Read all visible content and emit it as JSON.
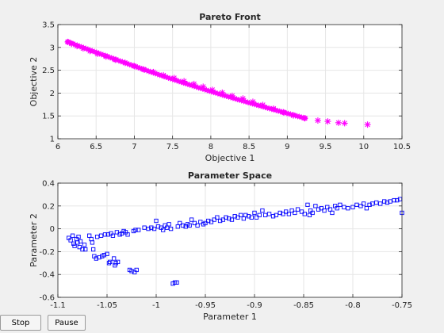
{
  "buttons": {
    "stop": "Stop",
    "pause": "Pause"
  },
  "chart_data": [
    {
      "type": "scatter",
      "title": "Pareto Front",
      "xlabel": "Objective 1",
      "ylabel": "Objective 2",
      "xlim": [
        6,
        10.5
      ],
      "ylim": [
        1,
        3.5
      ],
      "xticks": [
        6,
        6.5,
        7,
        7.5,
        8,
        8.5,
        9,
        9.5,
        10,
        10.5
      ],
      "xtick_labels": [
        "6",
        "6.5",
        "7",
        "7.5",
        "8",
        "8.5",
        "9",
        "9.5",
        "10",
        "10.5"
      ],
      "yticks": [
        1,
        1.5,
        2,
        2.5,
        3,
        3.5
      ],
      "ytick_labels": [
        "1",
        "1.5",
        "2",
        "2.5",
        "3",
        "3.5"
      ],
      "grid": true,
      "marker": "star",
      "color": "#ff00ff",
      "front_range": {
        "x_start": 6.13,
        "x_end": 9.23,
        "y_start": 3.12,
        "y_end": 1.45
      },
      "points": [
        [
          6.13,
          3.12
        ],
        [
          6.18,
          3.08
        ],
        [
          6.25,
          3.03
        ],
        [
          6.33,
          2.98
        ],
        [
          6.42,
          2.92
        ],
        [
          6.52,
          2.86
        ],
        [
          6.63,
          2.8
        ],
        [
          6.75,
          2.73
        ],
        [
          6.88,
          2.66
        ],
        [
          7.0,
          2.59
        ],
        [
          7.12,
          2.52
        ],
        [
          7.25,
          2.46
        ],
        [
          7.38,
          2.39
        ],
        [
          7.52,
          2.33
        ],
        [
          7.65,
          2.26
        ],
        [
          7.78,
          2.2
        ],
        [
          7.9,
          2.14
        ],
        [
          8.02,
          2.07
        ],
        [
          8.15,
          2.01
        ],
        [
          8.28,
          1.94
        ],
        [
          8.42,
          1.88
        ],
        [
          8.55,
          1.81
        ],
        [
          8.68,
          1.74
        ],
        [
          8.82,
          1.66
        ],
        [
          8.95,
          1.58
        ],
        [
          9.08,
          1.51
        ],
        [
          9.23,
          1.45
        ],
        [
          9.4,
          1.4
        ],
        [
          9.53,
          1.38
        ],
        [
          9.67,
          1.35
        ],
        [
          9.75,
          1.34
        ],
        [
          10.05,
          1.31
        ]
      ]
    },
    {
      "type": "scatter",
      "title": "Parameter Space",
      "xlabel": "Parameter 1",
      "ylabel": "Parameter 2",
      "xlim": [
        -1.1,
        -0.75
      ],
      "ylim": [
        -0.6,
        0.4
      ],
      "xticks": [
        -1.1,
        -1.05,
        -1,
        -0.95,
        -0.9,
        -0.85,
        -0.8,
        -0.75
      ],
      "xtick_labels": [
        "-1.1",
        "-1.05",
        "-1",
        "-0.95",
        "-0.9",
        "-0.85",
        "-0.8",
        "-0.75"
      ],
      "yticks": [
        -0.6,
        -0.4,
        -0.2,
        0,
        0.2,
        0.4
      ],
      "ytick_labels": [
        "-0.6",
        "-0.4",
        "-0.2",
        "0",
        "0.2",
        "0.4"
      ],
      "grid": true,
      "marker": "square",
      "color": "#0000ff",
      "points": [
        [
          -1.089,
          -0.08
        ],
        [
          -1.087,
          -0.1
        ],
        [
          -1.085,
          -0.06
        ],
        [
          -1.084,
          -0.13
        ],
        [
          -1.083,
          -0.15
        ],
        [
          -1.081,
          -0.09
        ],
        [
          -1.08,
          -0.12
        ],
        [
          -1.079,
          -0.07
        ],
        [
          -1.078,
          -0.16
        ],
        [
          -1.077,
          -0.11
        ],
        [
          -1.075,
          -0.18
        ],
        [
          -1.073,
          -0.14
        ],
        [
          -1.072,
          -0.18
        ],
        [
          -1.068,
          -0.06
        ],
        [
          -1.066,
          -0.09
        ],
        [
          -1.065,
          -0.12
        ],
        [
          -1.064,
          -0.18
        ],
        [
          -1.063,
          -0.24
        ],
        [
          -1.061,
          -0.26
        ],
        [
          -1.06,
          -0.07
        ],
        [
          -1.058,
          -0.25
        ],
        [
          -1.056,
          -0.06
        ],
        [
          -1.055,
          -0.24
        ],
        [
          -1.053,
          -0.23
        ],
        [
          -1.052,
          -0.05
        ],
        [
          -1.05,
          -0.22
        ],
        [
          -1.049,
          -0.05
        ],
        [
          -1.048,
          -0.3
        ],
        [
          -1.047,
          -0.29
        ],
        [
          -1.046,
          -0.04
        ],
        [
          -1.044,
          -0.06
        ],
        [
          -1.043,
          -0.26
        ],
        [
          -1.042,
          -0.32
        ],
        [
          -1.041,
          -0.3
        ],
        [
          -1.04,
          -0.03
        ],
        [
          -1.039,
          -0.29
        ],
        [
          -1.037,
          -0.05
        ],
        [
          -1.035,
          -0.04
        ],
        [
          -1.033,
          -0.02
        ],
        [
          -1.031,
          -0.03
        ],
        [
          -1.029,
          -0.05
        ],
        [
          -1.027,
          -0.36
        ],
        [
          -1.025,
          -0.37
        ],
        [
          -1.023,
          -0.02
        ],
        [
          -1.022,
          -0.38
        ],
        [
          -1.021,
          -0.01
        ],
        [
          -1.02,
          -0.36
        ],
        [
          -1.018,
          -0.01
        ],
        [
          -1.012,
          0.01
        ],
        [
          -1.008,
          0.0
        ],
        [
          -1.005,
          0.01
        ],
        [
          -1.002,
          0.0
        ],
        [
          -1.0,
          0.07
        ],
        [
          -0.998,
          0.02
        ],
        [
          -0.995,
          0.01
        ],
        [
          -0.993,
          -0.01
        ],
        [
          -0.991,
          0.03
        ],
        [
          -0.989,
          0.01
        ],
        [
          -0.987,
          0.04
        ],
        [
          -0.985,
          0.0
        ],
        [
          -0.983,
          -0.48
        ],
        [
          -0.981,
          -0.47
        ],
        [
          -0.979,
          -0.47
        ],
        [
          -0.978,
          0.02
        ],
        [
          -0.976,
          0.05
        ],
        [
          -0.973,
          0.03
        ],
        [
          -0.97,
          0.02
        ],
        [
          -0.968,
          0.04
        ],
        [
          -0.966,
          0.03
        ],
        [
          -0.964,
          0.08
        ],
        [
          -0.961,
          0.05
        ],
        [
          -0.958,
          0.03
        ],
        [
          -0.955,
          0.06
        ],
        [
          -0.952,
          0.04
        ],
        [
          -0.95,
          0.05
        ],
        [
          -0.947,
          0.07
        ],
        [
          -0.944,
          0.06
        ],
        [
          -0.941,
          0.08
        ],
        [
          -0.938,
          0.1
        ],
        [
          -0.935,
          0.07
        ],
        [
          -0.932,
          0.08
        ],
        [
          -0.929,
          0.1
        ],
        [
          -0.926,
          0.09
        ],
        [
          -0.923,
          0.08
        ],
        [
          -0.92,
          0.11
        ],
        [
          -0.917,
          0.1
        ],
        [
          -0.914,
          0.12
        ],
        [
          -0.911,
          0.09
        ],
        [
          -0.909,
          0.12
        ],
        [
          -0.906,
          0.11
        ],
        [
          -0.903,
          0.1
        ],
        [
          -0.9,
          0.14
        ],
        [
          -0.898,
          0.1
        ],
        [
          -0.895,
          0.12
        ],
        [
          -0.892,
          0.16
        ],
        [
          -0.889,
          0.12
        ],
        [
          -0.885,
          0.13
        ],
        [
          -0.881,
          0.11
        ],
        [
          -0.878,
          0.12
        ],
        [
          -0.874,
          0.14
        ],
        [
          -0.871,
          0.13
        ],
        [
          -0.868,
          0.15
        ],
        [
          -0.865,
          0.13
        ],
        [
          -0.862,
          0.16
        ],
        [
          -0.859,
          0.14
        ],
        [
          -0.856,
          0.17
        ],
        [
          -0.852,
          0.15
        ],
        [
          -0.849,
          0.13
        ],
        [
          -0.846,
          0.21
        ],
        [
          -0.844,
          0.12
        ],
        [
          -0.843,
          0.16
        ],
        [
          -0.841,
          0.14
        ],
        [
          -0.838,
          0.2
        ],
        [
          -0.835,
          0.17
        ],
        [
          -0.832,
          0.18
        ],
        [
          -0.829,
          0.16
        ],
        [
          -0.826,
          0.19
        ],
        [
          -0.823,
          0.17
        ],
        [
          -0.821,
          0.14
        ],
        [
          -0.818,
          0.2
        ],
        [
          -0.816,
          0.18
        ],
        [
          -0.813,
          0.21
        ],
        [
          -0.809,
          0.19
        ],
        [
          -0.805,
          0.18
        ],
        [
          -0.8,
          0.19
        ],
        [
          -0.796,
          0.21
        ],
        [
          -0.792,
          0.2
        ],
        [
          -0.789,
          0.22
        ],
        [
          -0.786,
          0.18
        ],
        [
          -0.783,
          0.21
        ],
        [
          -0.78,
          0.22
        ],
        [
          -0.776,
          0.23
        ],
        [
          -0.772,
          0.22
        ],
        [
          -0.768,
          0.24
        ],
        [
          -0.765,
          0.23
        ],
        [
          -0.762,
          0.24
        ],
        [
          -0.758,
          0.25
        ],
        [
          -0.755,
          0.25
        ],
        [
          -0.752,
          0.26
        ],
        [
          -0.75,
          0.14
        ]
      ]
    }
  ]
}
